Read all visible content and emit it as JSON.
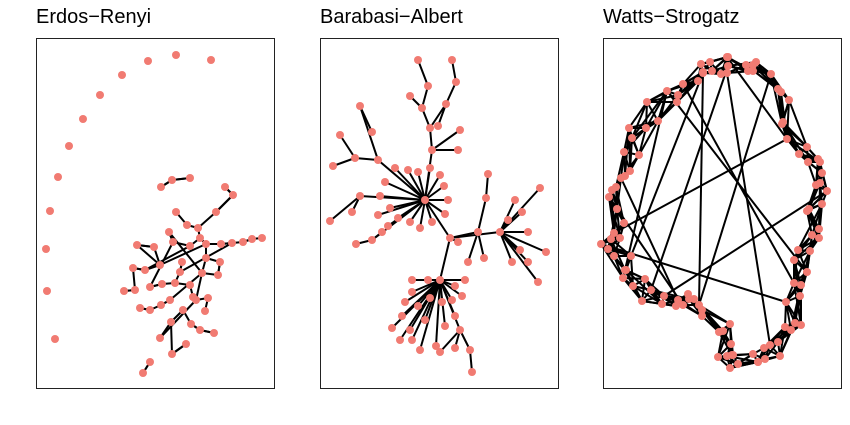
{
  "figure": {
    "panels": [
      {
        "id": "er",
        "title": "Erdos−Renyi",
        "model": "random graph",
        "node_color": "#F17B72",
        "edge_color": "#000000"
      },
      {
        "id": "ba",
        "title": "Barabasi−Albert",
        "model": "scale-free graph",
        "node_color": "#F17B72",
        "edge_color": "#000000"
      },
      {
        "id": "ws",
        "title": "Watts−Strogatz",
        "model": "small-world graph",
        "node_color": "#F17B72",
        "edge_color": "#000000"
      }
    ]
  }
}
